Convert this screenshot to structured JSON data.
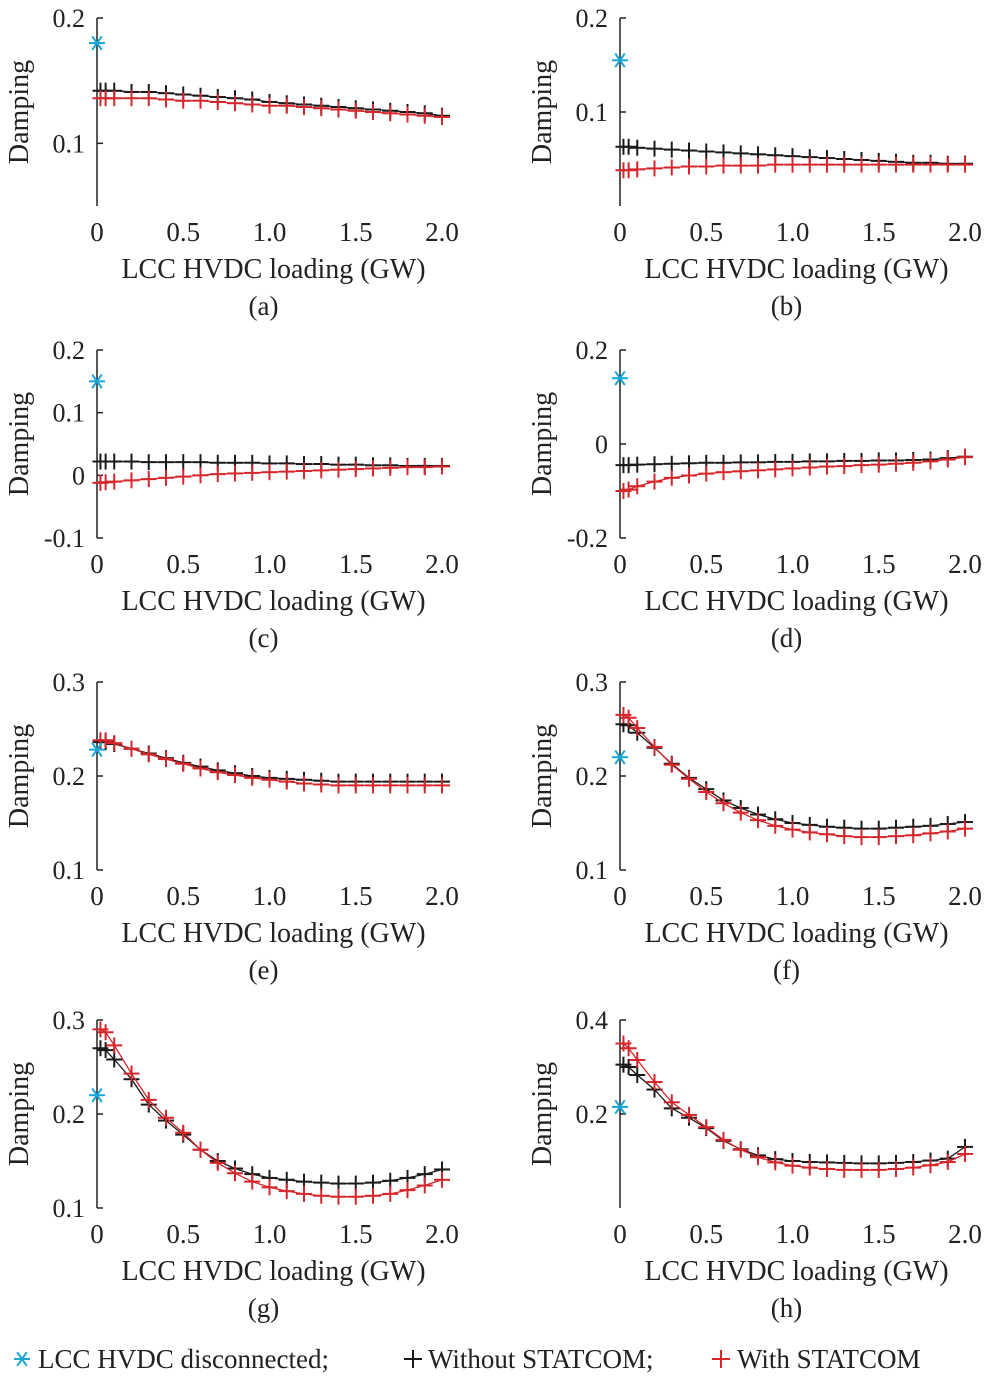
{
  "colors": {
    "disconnected": "#1aa6d4",
    "without": "#1a1a1a",
    "with": "#d6262b",
    "axis": "#222222"
  },
  "legend": {
    "disconnected_label": "LCC HVDC disconnected;",
    "without_label": "Without STATCOM;",
    "with_label": "With STATCOM"
  },
  "chart_data": [
    {
      "id": "a",
      "type": "scatter",
      "caption": "(a)",
      "xlabel": "LCC HVDC loading (GW)",
      "ylabel": "Damping",
      "xlim": [
        0,
        2.0
      ],
      "xticks": [
        "0",
        "0.5",
        "1.0",
        "1.5",
        "2.0"
      ],
      "ylim": [
        0.05,
        0.2
      ],
      "yticks": [
        "0.1",
        "0.2"
      ],
      "ytick_values": [
        0.1,
        0.2
      ],
      "disconnected": {
        "x": 0,
        "y": 0.18
      },
      "x": [
        0.02,
        0.05,
        0.1,
        0.2,
        0.3,
        0.4,
        0.5,
        0.6,
        0.7,
        0.8,
        0.9,
        1.0,
        1.1,
        1.2,
        1.3,
        1.4,
        1.5,
        1.6,
        1.7,
        1.8,
        1.9,
        2.0
      ],
      "series": [
        {
          "key": "without",
          "values": [
            0.142,
            0.142,
            0.142,
            0.141,
            0.141,
            0.14,
            0.139,
            0.138,
            0.137,
            0.136,
            0.135,
            0.133,
            0.132,
            0.131,
            0.13,
            0.129,
            0.128,
            0.127,
            0.126,
            0.125,
            0.124,
            0.122
          ]
        },
        {
          "key": "with",
          "values": [
            0.136,
            0.136,
            0.136,
            0.136,
            0.136,
            0.135,
            0.134,
            0.134,
            0.133,
            0.132,
            0.131,
            0.13,
            0.13,
            0.129,
            0.128,
            0.127,
            0.126,
            0.125,
            0.124,
            0.123,
            0.122,
            0.121
          ]
        }
      ]
    },
    {
      "id": "b",
      "type": "scatter",
      "caption": "(b)",
      "xlabel": "LCC HVDC loading (GW)",
      "ylabel": "Damping",
      "xlim": [
        0,
        2.0
      ],
      "xticks": [
        "0",
        "0.5",
        "1.0",
        "1.5",
        "2.0"
      ],
      "ylim": [
        0,
        0.2
      ],
      "yticks": [
        "0.1",
        "0.2"
      ],
      "ytick_values": [
        0.1,
        0.2
      ],
      "disconnected": {
        "x": 0,
        "y": 0.155
      },
      "x": [
        0.02,
        0.05,
        0.1,
        0.2,
        0.3,
        0.4,
        0.5,
        0.6,
        0.7,
        0.8,
        0.9,
        1.0,
        1.1,
        1.2,
        1.3,
        1.4,
        1.5,
        1.6,
        1.7,
        1.8,
        1.9,
        2.0
      ],
      "series": [
        {
          "key": "without",
          "values": [
            0.063,
            0.063,
            0.062,
            0.061,
            0.06,
            0.059,
            0.058,
            0.057,
            0.056,
            0.055,
            0.054,
            0.053,
            0.052,
            0.051,
            0.05,
            0.049,
            0.048,
            0.047,
            0.046,
            0.046,
            0.045,
            0.045
          ]
        },
        {
          "key": "with",
          "values": [
            0.038,
            0.038,
            0.039,
            0.04,
            0.041,
            0.042,
            0.042,
            0.043,
            0.043,
            0.043,
            0.044,
            0.044,
            0.044,
            0.044,
            0.044,
            0.044,
            0.044,
            0.044,
            0.044,
            0.044,
            0.044,
            0.044
          ]
        }
      ]
    },
    {
      "id": "c",
      "type": "scatter",
      "caption": "(c)",
      "xlabel": "LCC HVDC loading (GW)",
      "ylabel": "Damping",
      "xlim": [
        0,
        2.0
      ],
      "xticks": [
        "0",
        "0.5",
        "1.0",
        "1.5",
        "2.0"
      ],
      "ylim": [
        -0.1,
        0.2
      ],
      "yticks": [
        "-0.1",
        "0",
        "0.1",
        "0.2"
      ],
      "ytick_values": [
        -0.1,
        0,
        0.1,
        0.2
      ],
      "disconnected": {
        "x": 0,
        "y": 0.15
      },
      "x": [
        0.02,
        0.05,
        0.1,
        0.2,
        0.3,
        0.4,
        0.5,
        0.6,
        0.7,
        0.8,
        0.9,
        1.0,
        1.1,
        1.2,
        1.3,
        1.4,
        1.5,
        1.6,
        1.7,
        1.8,
        1.9,
        2.0
      ],
      "series": [
        {
          "key": "without",
          "values": [
            0.022,
            0.022,
            0.022,
            0.022,
            0.021,
            0.021,
            0.021,
            0.021,
            0.02,
            0.02,
            0.02,
            0.019,
            0.019,
            0.018,
            0.018,
            0.017,
            0.017,
            0.016,
            0.016,
            0.015,
            0.015,
            0.015
          ]
        },
        {
          "key": "with",
          "values": [
            -0.012,
            -0.011,
            -0.01,
            -0.008,
            -0.006,
            -0.004,
            -0.002,
            0.0,
            0.002,
            0.003,
            0.004,
            0.005,
            0.006,
            0.007,
            0.008,
            0.009,
            0.01,
            0.011,
            0.012,
            0.013,
            0.013,
            0.014
          ]
        }
      ]
    },
    {
      "id": "d",
      "type": "scatter",
      "caption": "(d)",
      "xlabel": "LCC HVDC loading (GW)",
      "ylabel": "Damping",
      "xlim": [
        0,
        2.0
      ],
      "xticks": [
        "0",
        "0.5",
        "1.0",
        "1.5",
        "2.0"
      ],
      "ylim": [
        -0.2,
        0.2
      ],
      "yticks": [
        "-0.2",
        "0",
        "0.2"
      ],
      "ytick_values": [
        -0.2,
        0,
        0.2
      ],
      "disconnected": {
        "x": 0,
        "y": 0.14
      },
      "x": [
        0.02,
        0.05,
        0.1,
        0.2,
        0.3,
        0.4,
        0.5,
        0.6,
        0.7,
        0.8,
        0.9,
        1.0,
        1.1,
        1.2,
        1.3,
        1.4,
        1.5,
        1.6,
        1.7,
        1.8,
        1.9,
        2.0
      ],
      "series": [
        {
          "key": "without",
          "values": [
            -0.045,
            -0.045,
            -0.044,
            -0.043,
            -0.042,
            -0.041,
            -0.04,
            -0.04,
            -0.039,
            -0.039,
            -0.038,
            -0.038,
            -0.037,
            -0.037,
            -0.036,
            -0.036,
            -0.035,
            -0.035,
            -0.034,
            -0.033,
            -0.03,
            -0.027
          ]
        },
        {
          "key": "with",
          "values": [
            -0.1,
            -0.097,
            -0.09,
            -0.08,
            -0.072,
            -0.067,
            -0.063,
            -0.06,
            -0.058,
            -0.056,
            -0.054,
            -0.052,
            -0.05,
            -0.048,
            -0.047,
            -0.045,
            -0.044,
            -0.042,
            -0.04,
            -0.037,
            -0.033,
            -0.028
          ]
        }
      ]
    },
    {
      "id": "e",
      "type": "scatter",
      "caption": "(e)",
      "xlabel": "LCC HVDC loading (GW)",
      "ylabel": "Damping",
      "xlim": [
        0,
        2.0
      ],
      "xticks": [
        "0",
        "0.5",
        "1.0",
        "1.5",
        "2.0"
      ],
      "ylim": [
        0.1,
        0.3
      ],
      "yticks": [
        "0.1",
        "0.2",
        "0.3"
      ],
      "ytick_values": [
        0.1,
        0.2,
        0.3
      ],
      "disconnected": {
        "x": 0,
        "y": 0.228
      },
      "x": [
        0.02,
        0.05,
        0.1,
        0.2,
        0.3,
        0.4,
        0.5,
        0.6,
        0.7,
        0.8,
        0.9,
        1.0,
        1.1,
        1.2,
        1.3,
        1.4,
        1.5,
        1.6,
        1.7,
        1.8,
        1.9,
        2.0
      ],
      "series": [
        {
          "key": "without",
          "values": [
            0.236,
            0.236,
            0.234,
            0.229,
            0.224,
            0.219,
            0.214,
            0.21,
            0.206,
            0.203,
            0.2,
            0.198,
            0.197,
            0.196,
            0.195,
            0.194,
            0.194,
            0.194,
            0.194,
            0.194,
            0.194,
            0.194
          ]
        },
        {
          "key": "with",
          "values": [
            0.238,
            0.238,
            0.235,
            0.229,
            0.223,
            0.218,
            0.213,
            0.208,
            0.204,
            0.201,
            0.198,
            0.196,
            0.194,
            0.192,
            0.191,
            0.19,
            0.19,
            0.19,
            0.19,
            0.19,
            0.19,
            0.19
          ]
        }
      ]
    },
    {
      "id": "f",
      "type": "scatter",
      "caption": "(f)",
      "xlabel": "LCC HVDC loading (GW)",
      "ylabel": "Damping",
      "xlim": [
        0,
        2.0
      ],
      "xticks": [
        "0",
        "0.5",
        "1.0",
        "1.5",
        "2.0"
      ],
      "ylim": [
        0.1,
        0.3
      ],
      "yticks": [
        "0.1",
        "0.2",
        "0.3"
      ],
      "ytick_values": [
        0.1,
        0.2,
        0.3
      ],
      "disconnected": {
        "x": 0,
        "y": 0.22
      },
      "x": [
        0.02,
        0.05,
        0.1,
        0.2,
        0.3,
        0.4,
        0.5,
        0.6,
        0.7,
        0.8,
        0.9,
        1.0,
        1.1,
        1.2,
        1.3,
        1.4,
        1.5,
        1.6,
        1.7,
        1.8,
        1.9,
        2.0
      ],
      "series": [
        {
          "key": "without",
          "values": [
            0.255,
            0.254,
            0.246,
            0.23,
            0.213,
            0.198,
            0.186,
            0.174,
            0.166,
            0.159,
            0.154,
            0.15,
            0.148,
            0.146,
            0.145,
            0.144,
            0.144,
            0.145,
            0.146,
            0.147,
            0.149,
            0.151
          ]
        },
        {
          "key": "with",
          "values": [
            0.265,
            0.262,
            0.251,
            0.231,
            0.212,
            0.197,
            0.183,
            0.171,
            0.161,
            0.153,
            0.147,
            0.143,
            0.14,
            0.138,
            0.136,
            0.135,
            0.135,
            0.136,
            0.137,
            0.139,
            0.141,
            0.144
          ]
        }
      ]
    },
    {
      "id": "g",
      "type": "scatter",
      "caption": "(g)",
      "xlabel": "LCC HVDC loading (GW)",
      "ylabel": "Damping",
      "xlim": [
        0,
        2.0
      ],
      "xticks": [
        "0",
        "0.5",
        "1.0",
        "1.5",
        "2.0"
      ],
      "ylim": [
        0.1,
        0.3
      ],
      "yticks": [
        "0.1",
        "0.2",
        "0.3"
      ],
      "ytick_values": [
        0.1,
        0.2,
        0.3
      ],
      "disconnected": {
        "x": 0,
        "y": 0.22
      },
      "x": [
        0.02,
        0.05,
        0.1,
        0.2,
        0.3,
        0.4,
        0.5,
        0.6,
        0.7,
        0.8,
        0.9,
        1.0,
        1.1,
        1.2,
        1.3,
        1.4,
        1.5,
        1.6,
        1.7,
        1.8,
        1.9,
        2.0
      ],
      "series": [
        {
          "key": "without",
          "values": [
            0.27,
            0.268,
            0.258,
            0.237,
            0.21,
            0.193,
            0.178,
            0.162,
            0.15,
            0.142,
            0.136,
            0.132,
            0.13,
            0.128,
            0.127,
            0.126,
            0.126,
            0.127,
            0.129,
            0.132,
            0.136,
            0.141
          ]
        },
        {
          "key": "with",
          "values": [
            0.29,
            0.287,
            0.273,
            0.243,
            0.215,
            0.196,
            0.18,
            0.162,
            0.148,
            0.137,
            0.128,
            0.122,
            0.118,
            0.115,
            0.113,
            0.112,
            0.112,
            0.113,
            0.115,
            0.119,
            0.124,
            0.13
          ]
        }
      ]
    },
    {
      "id": "h",
      "type": "scatter",
      "caption": "(h)",
      "xlabel": "LCC HVDC loading (GW)",
      "ylabel": "Damping",
      "xlim": [
        0,
        2.0
      ],
      "xticks": [
        "0",
        "0.5",
        "1.0",
        "1.5",
        "2.0"
      ],
      "ylim": [
        0,
        0.4
      ],
      "yticks": [
        "0.2",
        "0.4"
      ],
      "ytick_values": [
        0.2,
        0.4
      ],
      "disconnected": {
        "x": 0,
        "y": 0.215
      },
      "x": [
        0.02,
        0.05,
        0.1,
        0.2,
        0.3,
        0.4,
        0.5,
        0.6,
        0.7,
        0.8,
        0.9,
        1.0,
        1.1,
        1.2,
        1.3,
        1.4,
        1.5,
        1.6,
        1.7,
        1.8,
        1.9,
        2.0
      ],
      "series": [
        {
          "key": "without",
          "values": [
            0.305,
            0.3,
            0.283,
            0.252,
            0.212,
            0.192,
            0.17,
            0.143,
            0.125,
            0.112,
            0.104,
            0.1,
            0.098,
            0.097,
            0.096,
            0.095,
            0.095,
            0.096,
            0.098,
            0.101,
            0.105,
            0.13
          ]
        },
        {
          "key": "with",
          "values": [
            0.35,
            0.34,
            0.315,
            0.268,
            0.225,
            0.198,
            0.172,
            0.145,
            0.124,
            0.108,
            0.097,
            0.09,
            0.086,
            0.083,
            0.081,
            0.081,
            0.081,
            0.083,
            0.086,
            0.091,
            0.098,
            0.115
          ]
        }
      ]
    }
  ]
}
